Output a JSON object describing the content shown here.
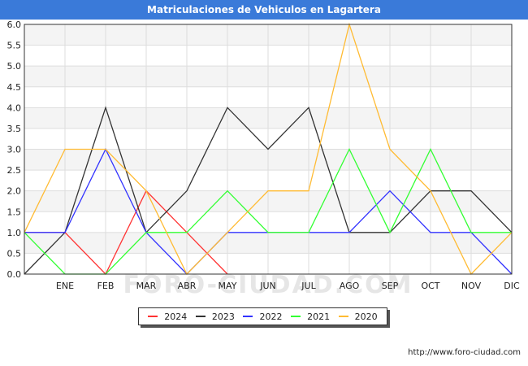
{
  "header": {
    "title": "Matriculaciones de Vehiculos en Lagartera"
  },
  "footer": {
    "url": "http://www.foro-ciudad.com"
  },
  "watermark": "FORO-CIUDAD.COM",
  "chart_data": {
    "type": "line",
    "title": "Matriculaciones de Vehiculos en Lagartera",
    "xlabel": "",
    "ylabel": "",
    "categories": [
      "",
      "ENE",
      "FEB",
      "MAR",
      "ABR",
      "MAY",
      "JUN",
      "JUL",
      "AGO",
      "SEP",
      "OCT",
      "NOV",
      "DIC"
    ],
    "ylim": [
      0,
      6
    ],
    "yticks": [
      "0.0",
      "0.5",
      "1.0",
      "1.5",
      "2.0",
      "2.5",
      "3.0",
      "3.5",
      "4.0",
      "4.5",
      "5.0",
      "5.5",
      "6.0"
    ],
    "grid": true,
    "legend": "bottom-center",
    "series": [
      {
        "name": "2024",
        "color": "#ff3333",
        "values": [
          1,
          1,
          0,
          2,
          1,
          0,
          null,
          null,
          null,
          null,
          null,
          null,
          null
        ]
      },
      {
        "name": "2023",
        "color": "#333333",
        "values": [
          0,
          1,
          4,
          1,
          2,
          4,
          3,
          4,
          1,
          1,
          2,
          2,
          1
        ]
      },
      {
        "name": "2022",
        "color": "#3333ff",
        "values": [
          1,
          1,
          3,
          1,
          0,
          1,
          1,
          1,
          1,
          2,
          1,
          1,
          0
        ]
      },
      {
        "name": "2021",
        "color": "#33ff33",
        "values": [
          1,
          0,
          0,
          1,
          1,
          2,
          1,
          1,
          3,
          1,
          3,
          1,
          1
        ]
      },
      {
        "name": "2020",
        "color": "#ffbb33",
        "values": [
          1,
          3,
          3,
          2,
          0,
          1,
          2,
          2,
          6,
          3,
          2,
          0,
          1
        ]
      }
    ]
  }
}
